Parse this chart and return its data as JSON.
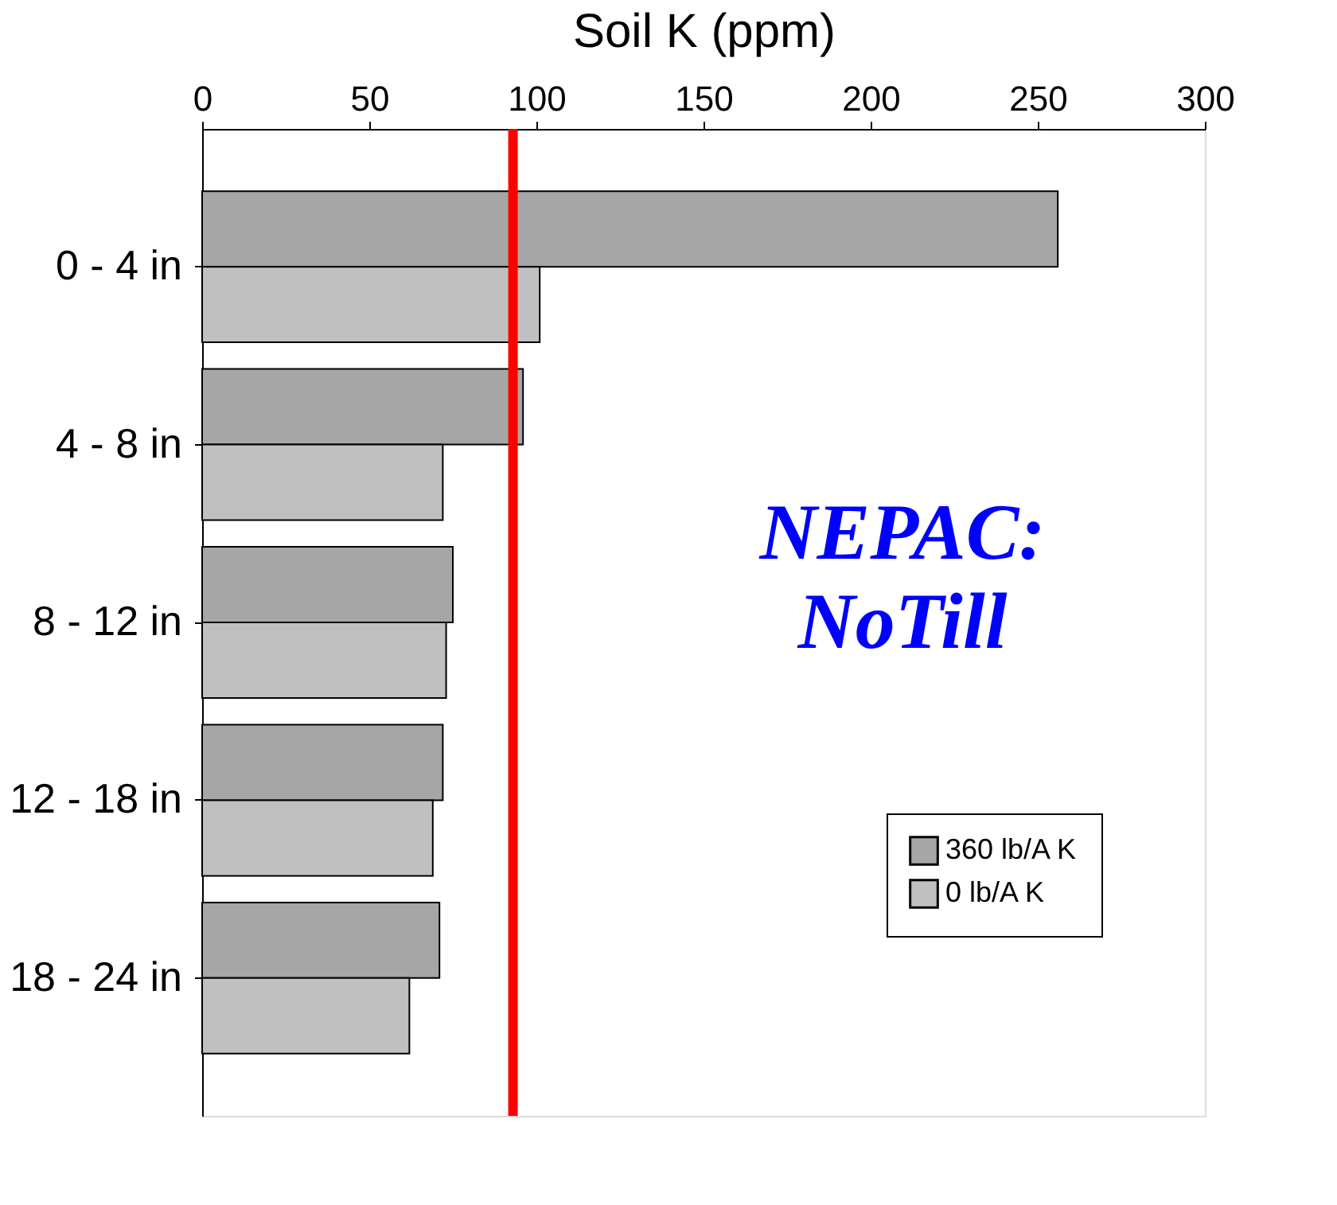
{
  "chart_data": {
    "type": "bar",
    "orientation": "horizontal",
    "xlabel": "Soil K (ppm)",
    "categories": [
      "0 - 4 in",
      "4 - 8 in",
      "8 - 12 in",
      "12 - 18 in",
      "18 - 24 in"
    ],
    "series": [
      {
        "name": "360 lb/A K",
        "color": "#a6a6a6",
        "values": [
          256,
          96,
          75,
          72,
          71
        ]
      },
      {
        "name": "0 lb/A K",
        "color": "#c0c0c0",
        "values": [
          101,
          72,
          73,
          69,
          62
        ]
      }
    ],
    "xlim": [
      0,
      300
    ],
    "xticks": [
      0,
      50,
      100,
      150,
      200,
      250,
      300
    ],
    "ref_lines": [
      {
        "axis": "x",
        "value": 93,
        "color": "#ff0000"
      }
    ],
    "annotations": [
      "NEPAC: NoTill"
    ],
    "legend": "bottom right",
    "grid": false
  }
}
